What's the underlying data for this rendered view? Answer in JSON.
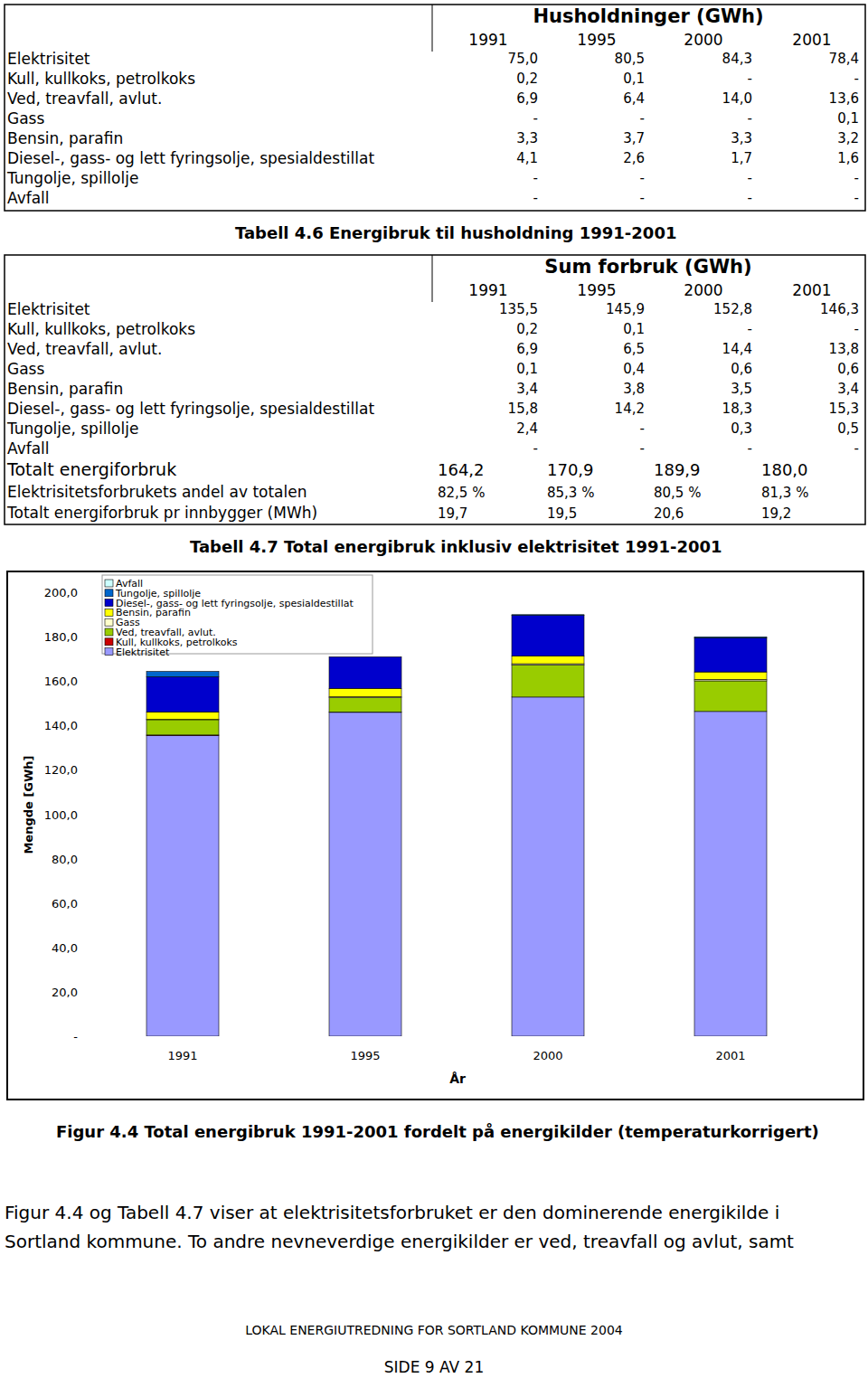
{
  "tables": [
    {
      "title": "Husholdninger (GWh)",
      "years": [
        "1991",
        "1995",
        "2000",
        "2001"
      ],
      "rows": [
        {
          "label": "Elektrisitet",
          "values": [
            "75,0",
            "80,5",
            "84,3",
            "78,4"
          ]
        },
        {
          "label": "Kull, kullkoks, petrolkoks",
          "values": [
            "0,2",
            "0,1",
            "-",
            "-"
          ]
        },
        {
          "label": "Ved, treavfall, avlut.",
          "values": [
            "6,9",
            "6,4",
            "14,0",
            "13,6"
          ]
        },
        {
          "label": "Gass",
          "values": [
            "-",
            "-",
            "-",
            "0,1"
          ]
        },
        {
          "label": "Bensin, parafin",
          "values": [
            "3,3",
            "3,7",
            "3,3",
            "3,2"
          ]
        },
        {
          "label": "Diesel-, gass- og lett fyringsolje, spesialdestillat",
          "values": [
            "4,1",
            "2,6",
            "1,7",
            "1,6"
          ]
        },
        {
          "label": "Tungolje, spillolje",
          "values": [
            "-",
            "-",
            "-",
            "-"
          ]
        },
        {
          "label": "Avfall",
          "values": [
            "-",
            "-",
            "-",
            "-"
          ]
        }
      ]
    },
    {
      "title": "Sum forbruk (GWh)",
      "years": [
        "1991",
        "1995",
        "2000",
        "2001"
      ],
      "rows": [
        {
          "label": "Elektrisitet",
          "values": [
            "135,5",
            "145,9",
            "152,8",
            "146,3"
          ]
        },
        {
          "label": "Kull, kullkoks, petrolkoks",
          "values": [
            "0,2",
            "0,1",
            "-",
            "-"
          ]
        },
        {
          "label": "Ved, treavfall, avlut.",
          "values": [
            "6,9",
            "6,5",
            "14,4",
            "13,8"
          ]
        },
        {
          "label": "Gass",
          "values": [
            "0,1",
            "0,4",
            "0,6",
            "0,6"
          ]
        },
        {
          "label": "Bensin, parafin",
          "values": [
            "3,4",
            "3,8",
            "3,5",
            "3,4"
          ]
        },
        {
          "label": "Diesel-, gass- og lett fyringsolje, spesialdestillat",
          "values": [
            "15,8",
            "14,2",
            "18,3",
            "15,3"
          ]
        },
        {
          "label": "Tungolje, spillolje",
          "values": [
            "2,4",
            "-",
            "0,3",
            "0,5"
          ]
        },
        {
          "label": "Avfall",
          "values": [
            "-",
            "-",
            "-",
            "-"
          ]
        }
      ],
      "summary_rows": [
        {
          "label": "Totalt energiforbruk",
          "values": [
            "164,2",
            "170,9",
            "189,9",
            "180,0"
          ]
        },
        {
          "label": "Elektrisitetsforbrukets andel av totalen",
          "values": [
            "82,5 %",
            "85,3 %",
            "80,5 %",
            "81,3 %"
          ]
        },
        {
          "label": "Totalt energiforbruk pr innbygger (MWh)",
          "values": [
            "19,7",
            "19,5",
            "20,6",
            "19,2"
          ]
        }
      ]
    }
  ],
  "captions": [
    "Tabell 4.6 Energibruk til husholdning 1991-2001",
    "Tabell 4.7 Total energibruk inklusiv elektrisitet 1991-2001",
    "Figur 4.4 Total energibruk 1991-2001 fordelt på energikilder (temperaturkorrigert)"
  ],
  "chart_data": {
    "type": "bar",
    "stacked": true,
    "x_label": "År",
    "y_label": "Mengde [GWh]",
    "categories": [
      "1991",
      "1995",
      "2000",
      "2001"
    ],
    "ylim": [
      0,
      200
    ],
    "yticks": [
      {
        "value": 0,
        "label": "-"
      },
      {
        "value": 20,
        "label": "20,0"
      },
      {
        "value": 40,
        "label": "40,0"
      },
      {
        "value": 60,
        "label": "60,0"
      },
      {
        "value": 80,
        "label": "80,0"
      },
      {
        "value": 100,
        "label": "100,0"
      },
      {
        "value": 120,
        "label": "120,0"
      },
      {
        "value": 140,
        "label": "140,0"
      },
      {
        "value": 160,
        "label": "160,0"
      },
      {
        "value": 180,
        "label": "180,0"
      },
      {
        "value": 200,
        "label": "200,0"
      }
    ],
    "grid": false,
    "legend": "top-left",
    "series": [
      {
        "name": "Elektrisitet",
        "color": "#9999ff",
        "values": [
          135.5,
          145.9,
          152.8,
          146.3
        ]
      },
      {
        "name": "Kull, kullkoks, petrolkoks",
        "color": "#cc0000",
        "values": [
          0.2,
          0.1,
          0,
          0
        ]
      },
      {
        "name": "Ved, treavfall, avlut.",
        "color": "#99cc00",
        "values": [
          6.9,
          6.5,
          14.4,
          13.8
        ]
      },
      {
        "name": "Gass",
        "color": "#ffffcc",
        "values": [
          0.1,
          0.4,
          0.6,
          0.6
        ]
      },
      {
        "name": "Bensin, parafin",
        "color": "#ffff00",
        "values": [
          3.4,
          3.8,
          3.5,
          3.4
        ]
      },
      {
        "name": "Diesel-, gass- og lett fyringsolje, spesialdestillat",
        "color": "#0000cc",
        "values": [
          15.8,
          14.2,
          18.3,
          15.3
        ]
      },
      {
        "name": "Tungolje, spillolje",
        "color": "#0066cc",
        "values": [
          2.4,
          0,
          0.3,
          0.5
        ]
      },
      {
        "name": "Avfall",
        "color": "#ccffff",
        "values": [
          0,
          0,
          0,
          0
        ]
      }
    ]
  },
  "body": {
    "lines": [
      "Figur 4.4 og Tabell 4.7 viser at elektrisitetsforbruket er den dominerende energikilde i",
      "Sortland kommune. To andre nevneverdige energikilder er ved, treavfall og avlut, samt"
    ]
  },
  "footer": {
    "title": "LOKAL ENERGIUTREDNING FOR SORTLAND KOMMUNE 2004",
    "page": "SIDE 9 AV 21"
  }
}
